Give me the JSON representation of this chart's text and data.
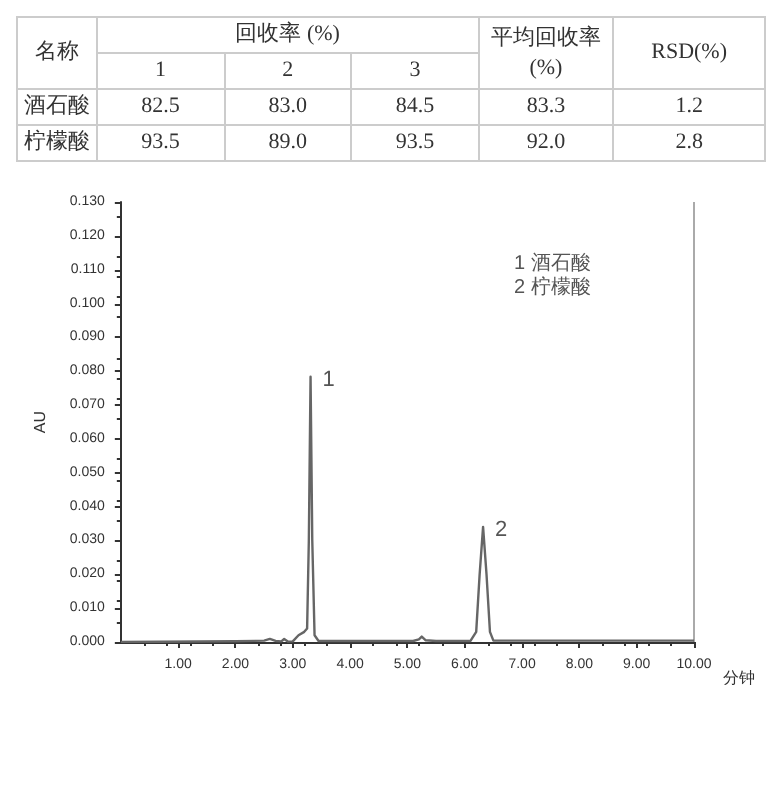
{
  "chart_data": [
    {
      "type": "other",
      "ylabel": "名称",
      "xlabel": "回收率 (%)",
      "categories": [
        "1",
        "2",
        "3",
        "平均回收率 (%)",
        "RSD(%)"
      ],
      "y_categories": [
        "酒石酸",
        "柠檬酸"
      ],
      "cell_labels": [
        [
          "82.5",
          "83.0",
          "84.5",
          "83.3",
          "1.2"
        ],
        [
          "93.5",
          "89.0",
          "93.5",
          "92.0",
          "2.8"
        ]
      ]
    },
    {
      "type": "line",
      "xlabel": "分钟",
      "ylabel": "AU",
      "xlim": [
        0,
        10
      ],
      "ylim": [
        0,
        0.13
      ],
      "xticks": [
        {
          "value": 1,
          "label": "1.00"
        },
        {
          "value": 2,
          "label": "2.00"
        },
        {
          "value": 3,
          "label": "3.00"
        },
        {
          "value": 4,
          "label": "4.00"
        },
        {
          "value": 5,
          "label": "5.00"
        },
        {
          "value": 6,
          "label": "6.00"
        },
        {
          "value": 7,
          "label": "7.00"
        },
        {
          "value": 8,
          "label": "8.00"
        },
        {
          "value": 9,
          "label": "9.00"
        },
        {
          "value": 10,
          "label": "10.00"
        }
      ],
      "yticks": [
        {
          "value": 0,
          "label": "0.000"
        },
        {
          "value": 0.01,
          "label": "0.010"
        },
        {
          "value": 0.02,
          "label": "0.020"
        },
        {
          "value": 0.03,
          "label": "0.030"
        },
        {
          "value": 0.04,
          "label": "0.040"
        },
        {
          "value": 0.05,
          "label": "0.050"
        },
        {
          "value": 0.06,
          "label": "0.060"
        },
        {
          "value": 0.07,
          "label": "0.070"
        },
        {
          "value": 0.08,
          "label": "0.080"
        },
        {
          "value": 0.09,
          "label": "0.090"
        },
        {
          "value": 0.1,
          "label": "0.100"
        },
        {
          "value": 0.11,
          "label": "0.110"
        },
        {
          "value": 0.12,
          "label": "0.120"
        },
        {
          "value": 0.13,
          "label": "0.130"
        }
      ],
      "x": [
        0,
        2.0,
        2.5,
        2.6,
        2.7,
        2.8,
        2.85,
        2.92,
        3.0,
        3.1,
        3.2,
        3.25,
        3.28,
        3.31,
        3.34,
        3.38,
        3.45,
        4.0,
        5.1,
        5.2,
        5.25,
        5.32,
        5.5,
        6.1,
        6.2,
        6.26,
        6.32,
        6.38,
        6.44,
        6.5,
        10
      ],
      "series": [
        {
          "color": "#666666",
          "values": [
            0,
            0.0002,
            0.0004,
            0.0009,
            0.0003,
            0.0002,
            0.0009,
            0.0001,
            0.0002,
            0.002,
            0.003,
            0.004,
            0.03,
            0.0784,
            0.03,
            0.002,
            0.0003,
            0.0003,
            0.0003,
            0.0008,
            0.0016,
            0.0005,
            0.0003,
            0.0003,
            0.003,
            0.02,
            0.034,
            0.02,
            0.003,
            0.0004,
            0.0004
          ]
        }
      ],
      "marker": "none",
      "line_style": "solid",
      "grid": false,
      "annotations": [
        {
          "text": "1",
          "x": 3.31,
          "y": 0.0784
        },
        {
          "text": "2",
          "x": 6.32,
          "y": 0.034
        },
        "1 酒石酸",
        "2 柠檬酸"
      ]
    }
  ]
}
